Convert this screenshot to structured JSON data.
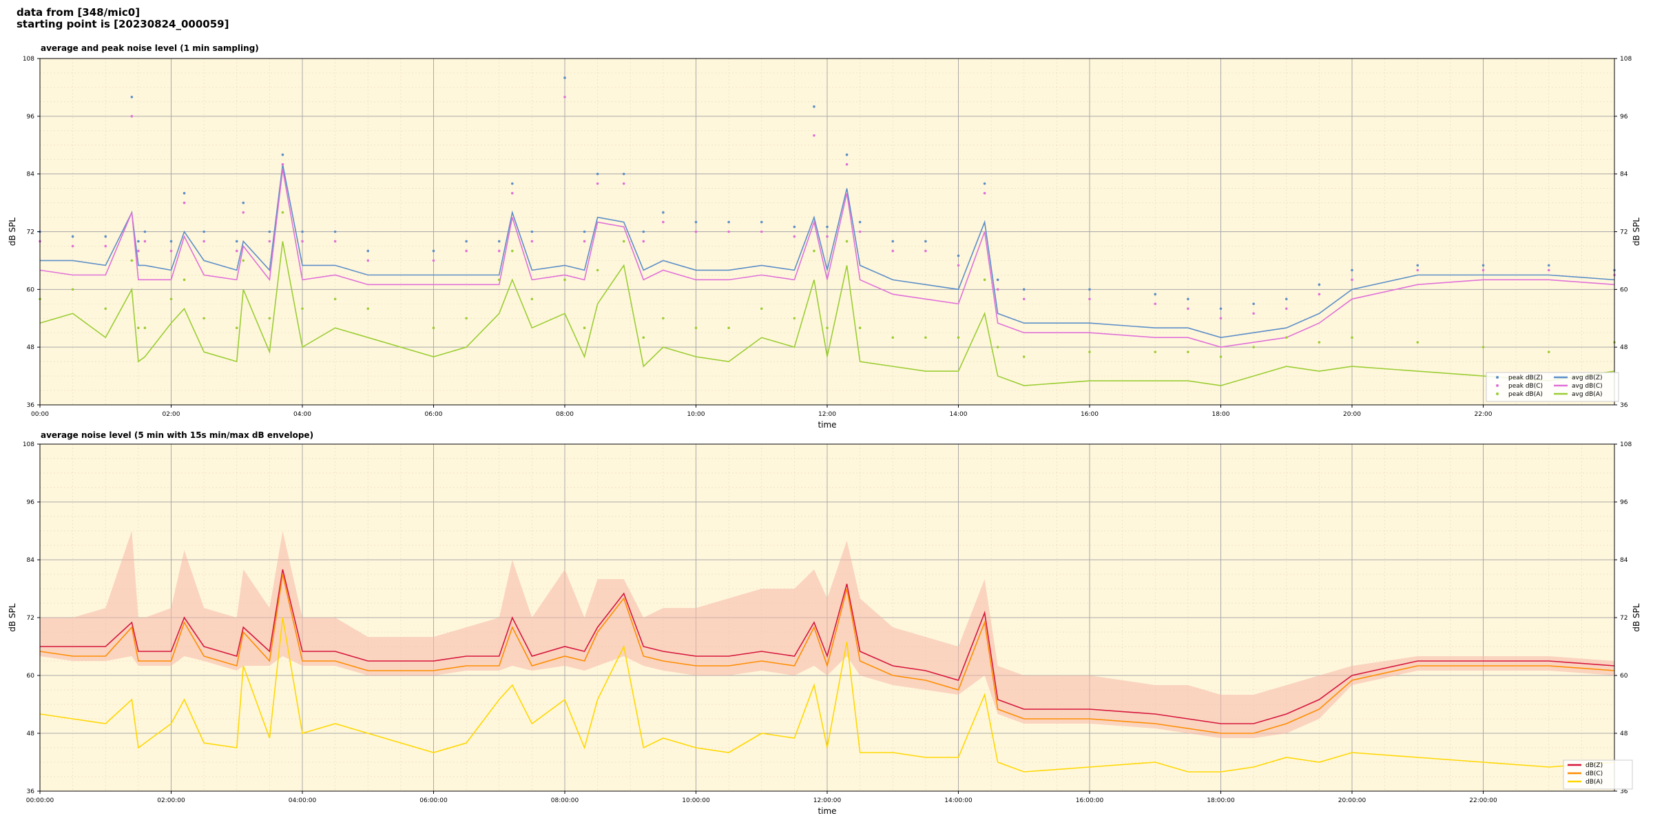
{
  "header": {
    "line1": "data from [348/mic0]",
    "line2": "starting point is [20230824_000059]"
  },
  "colors": {
    "plot_bg": "#fff7dc",
    "avg_z": "#5b8ec7",
    "avg_c": "#e070d8",
    "avg_a": "#9acd32",
    "dbz": "#d6143c",
    "dbc": "#ff8c00",
    "dba": "#ffd700",
    "envelope": "#f6b8a8"
  },
  "chart_data": [
    {
      "type": "line",
      "title": "average and peak noise level (1 min sampling)",
      "xlabel": "time",
      "ylabel": "dB SPL",
      "xlim": [
        0,
        24
      ],
      "ylim": [
        36,
        108
      ],
      "yticks": [
        36,
        48,
        60,
        72,
        84,
        96,
        108
      ],
      "xtick_labels": [
        "00:00",
        "02:00",
        "04:00",
        "06:00",
        "08:00",
        "10:00",
        "12:00",
        "14:00",
        "16:00",
        "18:00",
        "20:00",
        "22:00"
      ],
      "grid": true,
      "legend_position": "lower-right",
      "legend": [
        "peak dB(Z)",
        "peak dB(C)",
        "peak dB(A)",
        "avg dB(Z)",
        "avg dB(C)",
        "avg dB(A)"
      ],
      "x": [
        0,
        0.5,
        1,
        1.4,
        1.5,
        1.6,
        2,
        2.2,
        2.5,
        3,
        3.1,
        3.5,
        3.7,
        4,
        4.5,
        5,
        6,
        6.5,
        7,
        7.2,
        7.5,
        8,
        8.3,
        8.5,
        8.9,
        9.2,
        9.5,
        10,
        10.5,
        11,
        11.5,
        11.8,
        12,
        12.3,
        12.5,
        13,
        13.5,
        14,
        14.4,
        14.6,
        15,
        16,
        17,
        17.5,
        18,
        18.5,
        19,
        19.5,
        20,
        21,
        22,
        23,
        24
      ],
      "series": [
        {
          "name": "avg dB(Z)",
          "kind": "line",
          "values": [
            66,
            66,
            65,
            76,
            65,
            65,
            64,
            72,
            66,
            64,
            70,
            64,
            86,
            65,
            65,
            63,
            63,
            63,
            63,
            76,
            64,
            65,
            64,
            75,
            74,
            64,
            66,
            64,
            64,
            65,
            64,
            75,
            64,
            81,
            65,
            62,
            61,
            60,
            74,
            55,
            53,
            53,
            52,
            52,
            50,
            51,
            52,
            55,
            60,
            63,
            63,
            63,
            62
          ]
        },
        {
          "name": "avg dB(C)",
          "kind": "line",
          "values": [
            64,
            63,
            63,
            76,
            62,
            62,
            62,
            71,
            63,
            62,
            69,
            62,
            85,
            62,
            63,
            61,
            61,
            61,
            61,
            75,
            62,
            63,
            62,
            74,
            73,
            62,
            64,
            62,
            62,
            63,
            62,
            74,
            62,
            80,
            62,
            59,
            58,
            57,
            72,
            53,
            51,
            51,
            50,
            50,
            48,
            49,
            50,
            53,
            58,
            61,
            62,
            62,
            61
          ]
        },
        {
          "name": "avg dB(A)",
          "kind": "line",
          "values": [
            53,
            55,
            50,
            60,
            45,
            46,
            53,
            56,
            47,
            45,
            60,
            47,
            70,
            48,
            52,
            50,
            46,
            48,
            55,
            62,
            52,
            55,
            46,
            57,
            65,
            44,
            48,
            46,
            45,
            50,
            48,
            62,
            46,
            65,
            45,
            44,
            43,
            43,
            55,
            42,
            40,
            41,
            41,
            41,
            40,
            42,
            44,
            43,
            44,
            43,
            42,
            41,
            43
          ]
        },
        {
          "name": "peak dB(Z)",
          "kind": "scatter",
          "values": [
            72,
            71,
            71,
            100,
            70,
            72,
            70,
            80,
            72,
            70,
            78,
            72,
            88,
            72,
            72,
            68,
            68,
            70,
            70,
            82,
            72,
            104,
            72,
            84,
            84,
            72,
            76,
            74,
            74,
            74,
            73,
            98,
            73,
            88,
            74,
            70,
            70,
            67,
            82,
            62,
            60,
            60,
            59,
            58,
            56,
            57,
            58,
            61,
            64,
            65,
            65,
            65,
            64
          ]
        },
        {
          "name": "peak dB(C)",
          "kind": "scatter",
          "values": [
            70,
            69,
            69,
            96,
            68,
            70,
            68,
            78,
            70,
            68,
            76,
            70,
            86,
            70,
            70,
            66,
            66,
            68,
            68,
            80,
            70,
            100,
            70,
            82,
            82,
            70,
            74,
            72,
            72,
            72,
            71,
            92,
            71,
            86,
            72,
            68,
            68,
            65,
            80,
            60,
            58,
            58,
            57,
            56,
            54,
            55,
            56,
            59,
            62,
            64,
            64,
            64,
            63
          ]
        },
        {
          "name": "peak dB(A)",
          "kind": "scatter",
          "values": [
            58,
            60,
            56,
            66,
            52,
            52,
            58,
            62,
            54,
            52,
            66,
            54,
            76,
            56,
            58,
            56,
            52,
            54,
            62,
            68,
            58,
            62,
            52,
            64,
            70,
            50,
            54,
            52,
            52,
            56,
            54,
            68,
            52,
            70,
            52,
            50,
            50,
            50,
            62,
            48,
            46,
            47,
            47,
            47,
            46,
            48,
            50,
            49,
            50,
            49,
            48,
            47,
            49
          ]
        }
      ]
    },
    {
      "type": "line",
      "title": "average noise level (5 min with 15s min/max dB envelope)",
      "xlabel": "time",
      "ylabel": "dB SPL",
      "xlim": [
        0,
        24
      ],
      "ylim": [
        36,
        108
      ],
      "yticks": [
        36,
        48,
        60,
        72,
        84,
        96,
        108
      ],
      "xtick_labels": [
        "00:00:00",
        "02:00:00",
        "04:00:00",
        "06:00:00",
        "08:00:00",
        "10:00:00",
        "12:00:00",
        "14:00:00",
        "16:00:00",
        "18:00:00",
        "20:00:00",
        "22:00:00"
      ],
      "grid": true,
      "legend_position": "lower-right",
      "legend": [
        "dB(Z)",
        "dB(C)",
        "dB(A)"
      ],
      "x": [
        0,
        0.5,
        1,
        1.4,
        1.5,
        1.6,
        2,
        2.2,
        2.5,
        3,
        3.1,
        3.5,
        3.7,
        4,
        4.5,
        5,
        6,
        6.5,
        7,
        7.2,
        7.5,
        8,
        8.3,
        8.5,
        8.9,
        9.2,
        9.5,
        10,
        10.5,
        11,
        11.5,
        11.8,
        12,
        12.3,
        12.5,
        13,
        13.5,
        14,
        14.4,
        14.6,
        15,
        16,
        17,
        17.5,
        18,
        18.5,
        19,
        19.5,
        20,
        21,
        22,
        23,
        24
      ],
      "series": [
        {
          "name": "dB(Z)",
          "values": [
            66,
            66,
            66,
            71,
            65,
            65,
            65,
            72,
            66,
            64,
            70,
            65,
            82,
            65,
            65,
            63,
            63,
            64,
            64,
            72,
            64,
            66,
            65,
            70,
            77,
            66,
            65,
            64,
            64,
            65,
            64,
            71,
            64,
            79,
            65,
            62,
            61,
            59,
            73,
            55,
            53,
            53,
            52,
            51,
            50,
            50,
            52,
            55,
            60,
            63,
            63,
            63,
            62
          ]
        },
        {
          "name": "dB(C)",
          "values": [
            65,
            64,
            64,
            70,
            63,
            63,
            63,
            71,
            64,
            62,
            69,
            63,
            81,
            63,
            63,
            61,
            61,
            62,
            62,
            70,
            62,
            64,
            63,
            69,
            76,
            64,
            63,
            62,
            62,
            63,
            62,
            70,
            62,
            78,
            63,
            60,
            59,
            57,
            71,
            53,
            51,
            51,
            50,
            49,
            48,
            48,
            50,
            53,
            59,
            62,
            62,
            62,
            61
          ]
        },
        {
          "name": "dB(A)",
          "values": [
            52,
            51,
            50,
            55,
            45,
            46,
            50,
            55,
            46,
            45,
            62,
            47,
            72,
            48,
            50,
            48,
            44,
            46,
            55,
            58,
            50,
            55,
            45,
            55,
            66,
            45,
            47,
            45,
            44,
            48,
            47,
            58,
            45,
            67,
            44,
            44,
            43,
            43,
            56,
            42,
            40,
            41,
            42,
            40,
            40,
            41,
            43,
            42,
            44,
            43,
            42,
            41,
            42
          ]
        },
        {
          "name": "envelope max",
          "kind": "band",
          "values": [
            72,
            72,
            74,
            90,
            72,
            72,
            74,
            86,
            74,
            72,
            82,
            74,
            90,
            72,
            72,
            68,
            68,
            70,
            72,
            84,
            72,
            82,
            72,
            80,
            80,
            72,
            74,
            74,
            76,
            78,
            78,
            82,
            76,
            88,
            76,
            70,
            68,
            66,
            80,
            62,
            60,
            60,
            58,
            58,
            56,
            56,
            58,
            60,
            62,
            64,
            64,
            64,
            63
          ]
        },
        {
          "name": "envelope min",
          "kind": "band",
          "values": [
            64,
            63,
            63,
            64,
            62,
            62,
            62,
            64,
            63,
            61,
            62,
            62,
            64,
            62,
            62,
            60,
            60,
            61,
            61,
            62,
            61,
            62,
            61,
            62,
            64,
            62,
            61,
            60,
            60,
            61,
            60,
            62,
            60,
            64,
            60,
            58,
            57,
            56,
            60,
            52,
            50,
            50,
            49,
            48,
            47,
            47,
            48,
            51,
            58,
            61,
            61,
            61,
            60
          ]
        }
      ]
    }
  ]
}
